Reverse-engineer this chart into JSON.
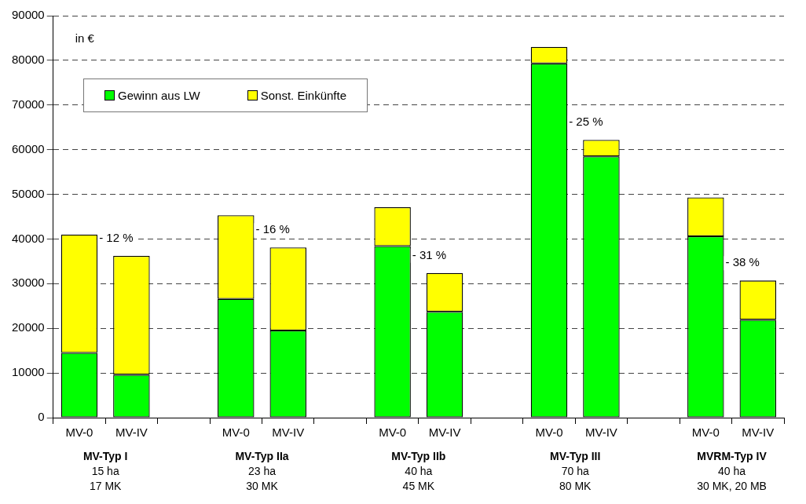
{
  "chart_data": {
    "type": "bar",
    "stacked": true,
    "categories": [
      "MV-0",
      "MV-IV",
      null,
      "MV-0",
      "MV-IV",
      null,
      "MV-0",
      "MV-IV",
      null,
      "MV-0",
      "MV-IV",
      null,
      "MV-0",
      "MV-IV"
    ],
    "series": [
      {
        "name": "Gewinn aus LW",
        "color": "#00ff00",
        "values": [
          14500,
          9600,
          null,
          26600,
          19500,
          null,
          38400,
          23700,
          null,
          79300,
          58500,
          null,
          40600,
          21900
        ]
      },
      {
        "name": "Sonst. Einkünfte",
        "color": "#ffff00",
        "values": [
          26500,
          26600,
          null,
          18700,
          18600,
          null,
          8700,
          8700,
          null,
          3700,
          3700,
          null,
          8700,
          8800
        ]
      }
    ],
    "ylim": [
      0,
      90000
    ],
    "yticks": [
      0,
      10000,
      20000,
      30000,
      40000,
      50000,
      60000,
      70000,
      80000,
      90000
    ],
    "grid": "y",
    "legend": "top left",
    "annotations": [
      "in €",
      "- 12 %",
      "- 16 %",
      "- 31 %",
      "- 25 %",
      "- 38 %",
      "MV-Typ I\n15 ha\n17 MK",
      "MV-Typ IIa\n23 ha\n30 MK",
      "MV-Typ IIb\n40 ha\n45 MK",
      "MV-Typ III\n70 ha\n80 MK",
      "MVRM-Typ IV\n40 ha\n30 MK, 20 MB"
    ]
  }
}
